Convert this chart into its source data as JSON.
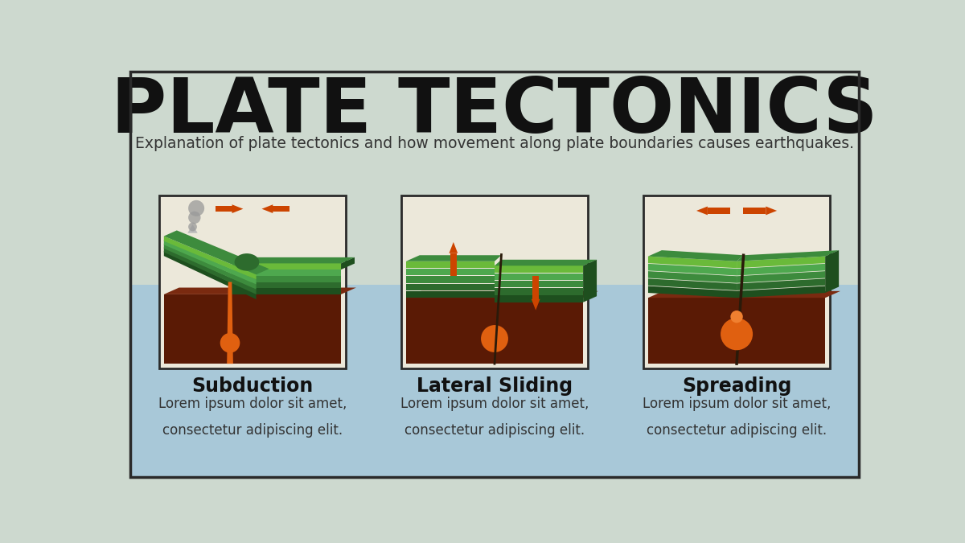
{
  "title": "PLATE TECTONICS",
  "subtitle": "Explanation of plate tectonics and how movement along plate boundaries causes earthquakes.",
  "bg_color_top": "#cdd9cf",
  "bg_color_bottom": "#a8c8d8",
  "border_color": "#2a2a2a",
  "panel_bg": "#e8e0cc",
  "panel_titles": [
    "Subduction",
    "Lateral Sliding",
    "Spreading"
  ],
  "panel_body": [
    "Lorem ipsum dolor sit amet,\nconsectetur adipiscing elit.",
    "Lorem ipsum dolor sit amet,\nconsectetur adipiscing elit.",
    "Lorem ipsum dolor sit amet,\nconsectetur adipiscing elit."
  ],
  "title_color": "#111111",
  "subtitle_color": "#333333",
  "panel_title_color": "#111111",
  "panel_body_color": "#333333",
  "arrow_color": "#cc4400",
  "green_darkest": "#1e4f1e",
  "green_dark": "#2d6b2d",
  "green_mid": "#3d8b3d",
  "green_light": "#4ea84e",
  "green_lighter": "#6aba3a",
  "green_stripe": "#559933",
  "brown_dark": "#5a1a05",
  "brown_mid": "#7a2a10",
  "brown_light": "#9a3a15",
  "orange_blob": "#e06010",
  "orange_light": "#f08030",
  "gray_smoke": "#999999",
  "gray_light": "#bbbbbb",
  "cream": "#d4c89a",
  "fault_color": "#8b4513"
}
